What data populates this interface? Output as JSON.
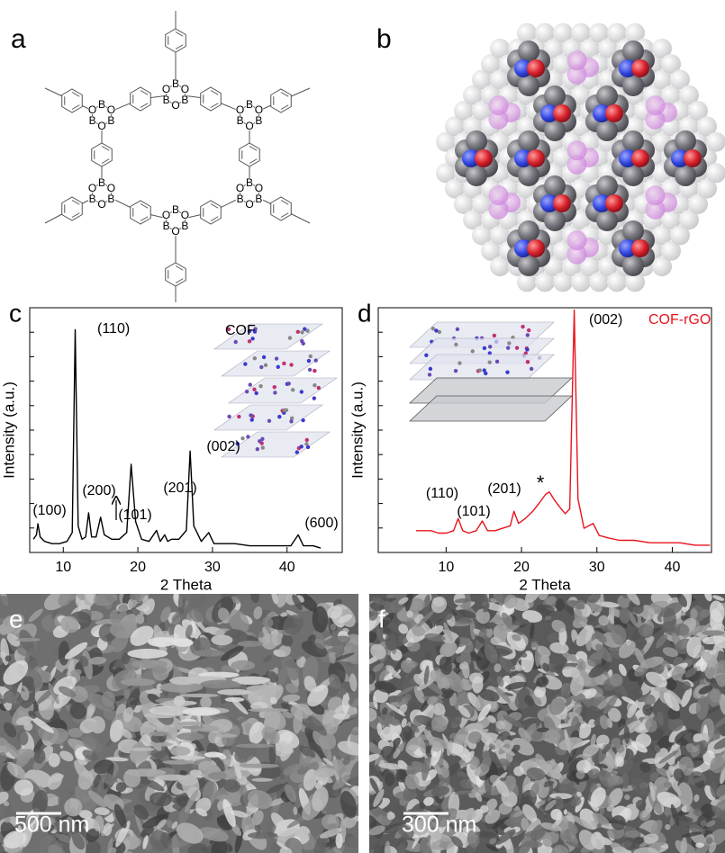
{
  "panel_labels": [
    "a",
    "b",
    "c",
    "d",
    "e",
    "f"
  ],
  "structure_atoms": [
    "B",
    "O",
    "B",
    "O",
    "B",
    "O",
    "B",
    "O",
    "B",
    "O",
    "B",
    "O",
    "B",
    "O",
    "B",
    "O",
    "B",
    "O",
    "B",
    "O",
    "B",
    "O",
    "B",
    "O",
    "B",
    "O",
    "B",
    "O",
    "B",
    "O",
    "B",
    "O",
    "B",
    "O",
    "B",
    "O"
  ],
  "scale_bars": [
    "500 nm",
    "300 nm"
  ],
  "chart_data": [
    {
      "type": "line",
      "x_label": "2 Theta",
      "y_label": "Intensity (a.u.)",
      "x": [
        6,
        6.4,
        6.6,
        6.9,
        7.5,
        8.5,
        9.5,
        10.5,
        11.2,
        11.6,
        12.0,
        12.5,
        13.0,
        13.4,
        13.8,
        14.4,
        15.0,
        15.5,
        16.5,
        17.5,
        18.5,
        19.1,
        19.7,
        20.5,
        21.5,
        22.5,
        23.0,
        23.6,
        24.0,
        24.5,
        25.5,
        26.5,
        27.0,
        27.5,
        28.5,
        29.5,
        30.2,
        31.5,
        33,
        35,
        37,
        39,
        40.5,
        41.5,
        42.2,
        43.5,
        44.5
      ],
      "series": [
        {
          "name": "COF",
          "color": "#000000",
          "values": [
            6,
            8,
            13,
            7,
            5,
            4,
            4,
            5,
            9,
            101,
            12,
            6,
            7,
            18,
            7,
            7,
            16,
            8,
            6,
            6,
            9,
            40,
            14,
            6,
            5,
            10,
            5,
            8,
            5,
            6,
            6,
            10,
            46,
            12,
            5,
            9,
            4,
            4,
            4,
            3,
            3,
            3,
            3,
            8,
            3,
            3,
            2
          ]
        }
      ],
      "xlim": [
        5.5,
        47.4
      ],
      "xticks": [
        10,
        20,
        30,
        40
      ],
      "ylim": [
        0,
        111
      ],
      "annotations": [
        "(110)",
        "(200)",
        "(100)",
        "(101)",
        "(201)",
        "(002)",
        "(600)"
      ]
    },
    {
      "type": "line",
      "x_label": "2 Theta",
      "y_label": "Intensity (a.u.)",
      "x": [
        6,
        7,
        8,
        9,
        10,
        11,
        11.6,
        12.2,
        13,
        14,
        14.8,
        15.5,
        16.5,
        17.5,
        18.5,
        19.0,
        19.6,
        20.5,
        21.5,
        22.5,
        23.2,
        23.7,
        24.3,
        25,
        25.8,
        26.4,
        27.0,
        27.5,
        28.3,
        29.5,
        30.3,
        31.5,
        33,
        35,
        37,
        39,
        41,
        43,
        45
      ],
      "series": [
        {
          "name": "COF-rGO",
          "color": "#e8141e",
          "values": [
            9,
            9,
            9,
            8,
            8,
            9,
            14,
            9,
            8,
            9,
            13,
            9,
            9,
            10,
            11,
            17,
            12,
            14,
            17,
            21,
            24,
            25,
            22,
            19,
            16,
            18,
            100,
            22,
            10,
            12,
            7,
            6,
            5,
            5,
            4,
            4,
            4,
            3,
            3
          ]
        }
      ],
      "xlim": [
        1,
        45.2
      ],
      "xticks": [
        10,
        20,
        30,
        40
      ],
      "ylim": [
        0,
        101
      ],
      "annotations": [
        "(110)",
        "(101)",
        "(201)",
        "*",
        "(002)"
      ]
    }
  ]
}
